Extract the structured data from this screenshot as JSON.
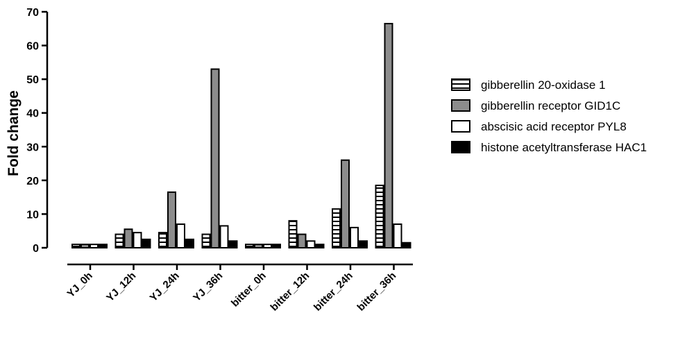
{
  "chart_data": {
    "type": "bar",
    "title": "",
    "xlabel": "",
    "ylabel": "Fold change",
    "ylim": [
      0,
      70
    ],
    "yticks": [
      0,
      10,
      20,
      30,
      40,
      50,
      60,
      70
    ],
    "categories": [
      "YJ_0h",
      "YJ_12h",
      "YJ_24h",
      "YJ_36h",
      "bitter_0h",
      "bitter_12h",
      "bitter_24h",
      "bitter_36h"
    ],
    "series": [
      {
        "name": "gibberellin 20-oxidase 1",
        "pattern": "white-horizontal-stripes",
        "values": [
          1,
          4,
          4.5,
          4,
          1,
          8,
          11.5,
          18.5
        ]
      },
      {
        "name": "gibberellin receptor GID1C",
        "pattern": "gray-fill",
        "values": [
          1,
          5.5,
          16.5,
          53,
          1,
          4,
          26,
          66.5
        ]
      },
      {
        "name": "abscisic acid receptor PYL8",
        "pattern": "white-fill",
        "values": [
          1,
          4.5,
          7,
          6.5,
          1,
          2,
          6,
          7
        ]
      },
      {
        "name": "histone acetyltransferase HAC1",
        "pattern": "black-fill",
        "values": [
          1,
          2.5,
          2.5,
          2,
          1,
          1,
          2,
          1.5
        ]
      }
    ],
    "grid": false,
    "legend_position": "right"
  },
  "colors": {
    "gray": "#8c8c8c",
    "black": "#000000",
    "white": "#ffffff"
  }
}
